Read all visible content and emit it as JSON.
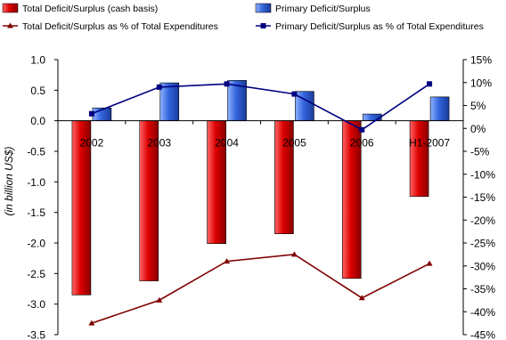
{
  "chart_data": {
    "type": "bar",
    "categories": [
      "2002",
      "2003",
      "2004",
      "2005",
      "2006",
      "H1-2007"
    ],
    "ylabel": "(in billion US$)",
    "ylim": [
      -3.5,
      1.0
    ],
    "y_ticks": [
      1.0,
      0.5,
      0.0,
      -0.5,
      -1.0,
      -1.5,
      -2.0,
      -2.5,
      -3.0,
      -3.5
    ],
    "y_tick_labels": [
      "1.0",
      "0.5",
      "0.0",
      "-0.5",
      "-1.0",
      "-1.5",
      "-2.0",
      "-2.5",
      "-3.0",
      "-3.5"
    ],
    "y2lim": [
      -45,
      15
    ],
    "y2_ticks": [
      15,
      10,
      5,
      0,
      -5,
      -10,
      -15,
      -20,
      -25,
      -30,
      -35,
      -40,
      -45
    ],
    "y2_tick_labels": [
      "15%",
      "10%",
      "5%",
      "0%",
      "-5%",
      "-10%",
      "-15%",
      "-20%",
      "-25%",
      "-30%",
      "-35%",
      "-40%",
      "-45%"
    ],
    "grid": false,
    "legend_position": "top",
    "bar_series": [
      {
        "name": "Total Deficit/Surplus (cash basis)",
        "color": "#cc0000",
        "values": [
          -2.85,
          -2.62,
          -2.01,
          -1.85,
          -2.58,
          -1.24
        ]
      },
      {
        "name": "Primary Deficit/Surplus",
        "color": "#3366cc",
        "values": [
          0.21,
          0.62,
          0.66,
          0.48,
          0.11,
          0.39
        ]
      }
    ],
    "line_series": [
      {
        "name": "Total Deficit/Surplus as % of Total Expenditures",
        "color": "#800000",
        "marker": "triangle",
        "axis": "right",
        "values": [
          -42.5,
          -37.5,
          -29.0,
          -27.5,
          -37.0,
          -29.5
        ]
      },
      {
        "name": "Primary Deficit/Surplus as % of Total Expenditures",
        "color": "#000080",
        "marker": "square",
        "axis": "right",
        "values": [
          3.2,
          9.0,
          9.7,
          7.5,
          -0.3,
          9.7
        ]
      }
    ]
  }
}
